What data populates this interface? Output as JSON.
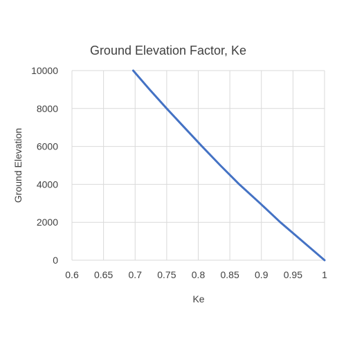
{
  "chart_data": {
    "type": "line",
    "title": "Ground Elevation Factor, Ke",
    "xlabel": "Ke",
    "ylabel": "Ground Elevation",
    "xlim": [
      0.6,
      1
    ],
    "ylim": [
      0,
      10000
    ],
    "x_ticks": [
      "0.6",
      "0.65",
      "0.7",
      "0.75",
      "0.8",
      "0.85",
      "0.9",
      "0.95",
      "1"
    ],
    "y_ticks": [
      "0",
      "2000",
      "4000",
      "6000",
      "8000",
      "10000"
    ],
    "grid": true,
    "legend": "none",
    "series": [
      {
        "color": "#4472c4",
        "x": [
          1.0,
          0.965,
          0.93,
          0.898,
          0.865,
          0.835,
          0.806,
          0.778,
          0.75,
          0.723,
          0.697
        ],
        "y": [
          0,
          1000,
          2000,
          3000,
          4000,
          5000,
          6000,
          7000,
          8000,
          9000,
          10000
        ]
      }
    ]
  }
}
